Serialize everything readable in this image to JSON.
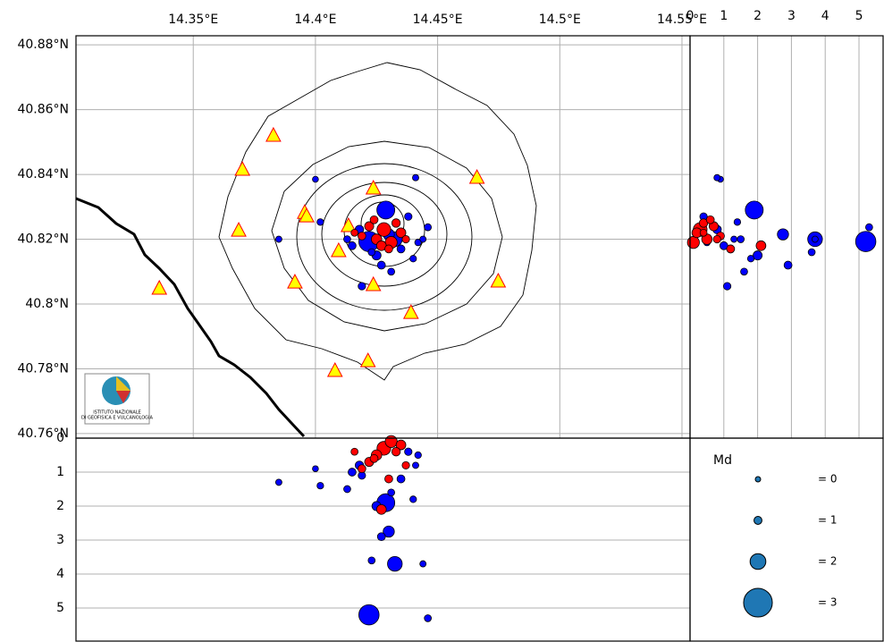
{
  "chart_data": {
    "type": "scatter",
    "xlim": [
      14.302,
      14.5533
    ],
    "ylim": [
      40.7586,
      40.8828
    ],
    "xticks": [
      {
        "value": 14.35,
        "label": "14.35°E"
      },
      {
        "value": 14.4,
        "label": "14.4°E"
      },
      {
        "value": 14.45,
        "label": "14.45°E"
      },
      {
        "value": 14.5,
        "label": "14.5°E"
      },
      {
        "value": 14.55,
        "label": "14.55°E"
      }
    ],
    "yticks": [
      {
        "value": 40.88,
        "label": "40.88°N"
      },
      {
        "value": 40.86,
        "label": "40.86°N"
      },
      {
        "value": 40.84,
        "label": "40.84°N"
      },
      {
        "value": 40.82,
        "label": "40.82°N"
      },
      {
        "value": 40.8,
        "label": "40.8°N"
      },
      {
        "value": 40.78,
        "label": "40.78°N"
      },
      {
        "value": 40.76,
        "label": "40.76°N"
      }
    ],
    "grid": true,
    "depth_lim": [
      0,
      6
    ],
    "depth_ticks": [
      0,
      1,
      2,
      3,
      4,
      5
    ],
    "side_lim": [
      0,
      5.74
    ],
    "side_ticks": [
      0,
      1,
      2,
      3,
      4,
      5
    ],
    "stations": {
      "color": "#ffff00",
      "edge": "#ff0000",
      "lon": [
        14.3828,
        14.3701,
        14.3686,
        14.3361,
        14.3956,
        14.3964,
        14.4135,
        14.4095,
        14.3916,
        14.4237,
        14.4237,
        14.4391,
        14.408,
        14.4215,
        14.4661,
        14.4748
      ],
      "lat": [
        40.8519,
        40.8414,
        40.8226,
        40.8047,
        40.8281,
        40.827,
        40.824,
        40.8163,
        40.8066,
        40.8356,
        40.8058,
        40.7972,
        40.7793,
        40.7823,
        40.8389,
        40.8069
      ]
    },
    "series": [
      {
        "color": "#0000ff",
        "lon": [
          14.4288,
          14.4219,
          14.4325,
          14.43,
          14.446,
          14.4,
          14.441,
          14.419,
          14.402,
          14.385,
          14.413,
          14.425,
          14.435,
          14.442,
          14.418,
          14.427,
          14.44,
          14.438,
          14.423,
          14.444,
          14.431,
          14.415
        ],
        "lat": [
          40.829,
          40.8193,
          40.82,
          40.8215,
          40.8237,
          40.8385,
          40.839,
          40.8055,
          40.8253,
          40.82,
          40.82,
          40.815,
          40.817,
          40.819,
          40.823,
          40.812,
          40.814,
          40.827,
          40.816,
          40.82,
          40.81,
          40.818
        ],
        "depth": [
          1.9,
          5.2,
          3.7,
          2.75,
          5.3,
          0.9,
          0.8,
          1.1,
          1.4,
          1.3,
          1.5,
          2.0,
          1.2,
          0.5,
          0.8,
          2.9,
          1.8,
          0.4,
          3.6,
          3.7,
          1.6,
          1.0
        ],
        "md": [
          2.2,
          2.4,
          1.9,
          1.5,
          0.8,
          0.5,
          0.6,
          0.9,
          0.7,
          0.6,
          0.8,
          1.2,
          1.0,
          0.7,
          1.1,
          1.0,
          0.7,
          0.9,
          0.8,
          0.6,
          0.8,
          1.0
        ]
      },
      {
        "color": "#ff0000",
        "lon": [
          14.428,
          14.425,
          14.431,
          14.422,
          14.435,
          14.419,
          14.433,
          14.427,
          14.424,
          14.437,
          14.43,
          14.416
        ],
        "lat": [
          40.823,
          40.82,
          40.819,
          40.824,
          40.822,
          40.821,
          40.825,
          40.818,
          40.826,
          40.82,
          40.817,
          40.822
        ],
        "depth": [
          0.3,
          0.5,
          0.1,
          0.7,
          0.2,
          0.9,
          0.4,
          2.1,
          0.6,
          0.8,
          1.2,
          0.4
        ],
        "md": [
          1.8,
          1.4,
          1.6,
          1.2,
          1.3,
          1.0,
          1.1,
          1.3,
          1.0,
          0.9,
          1.0,
          0.8
        ]
      }
    ],
    "legend": {
      "title": "Md",
      "values": [
        0,
        1,
        2,
        3
      ],
      "labels": [
        "= 0",
        "= 1",
        "= 2",
        "= 3"
      ],
      "color": "#1f77b4"
    },
    "logo": {
      "line1": "ISTITUTO NAZIONALE",
      "line2": "DI GEOFISICA E VULCANOLOGIA"
    }
  }
}
